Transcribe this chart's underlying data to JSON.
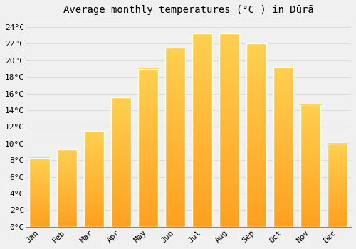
{
  "title": "Average monthly temperatures (°C ) in Dūrā",
  "months": [
    "Jan",
    "Feb",
    "Mar",
    "Apr",
    "May",
    "Jun",
    "Jul",
    "Aug",
    "Sep",
    "Oct",
    "Nov",
    "Dec"
  ],
  "values": [
    8.3,
    9.3,
    11.5,
    15.5,
    19.0,
    21.5,
    23.2,
    23.2,
    22.0,
    19.2,
    14.7,
    10.0
  ],
  "bar_color_top": "#FFD050",
  "bar_color_bottom": "#FFA020",
  "bar_edge_color": "#FFFFFF",
  "ylim": [
    0,
    25
  ],
  "ytick_values": [
    0,
    2,
    4,
    6,
    8,
    10,
    12,
    14,
    16,
    18,
    20,
    22,
    24
  ],
  "background_color": "#F0F0F0",
  "grid_color": "#DDDDDD",
  "title_fontsize": 10,
  "tick_fontsize": 8,
  "bar_width": 0.75
}
